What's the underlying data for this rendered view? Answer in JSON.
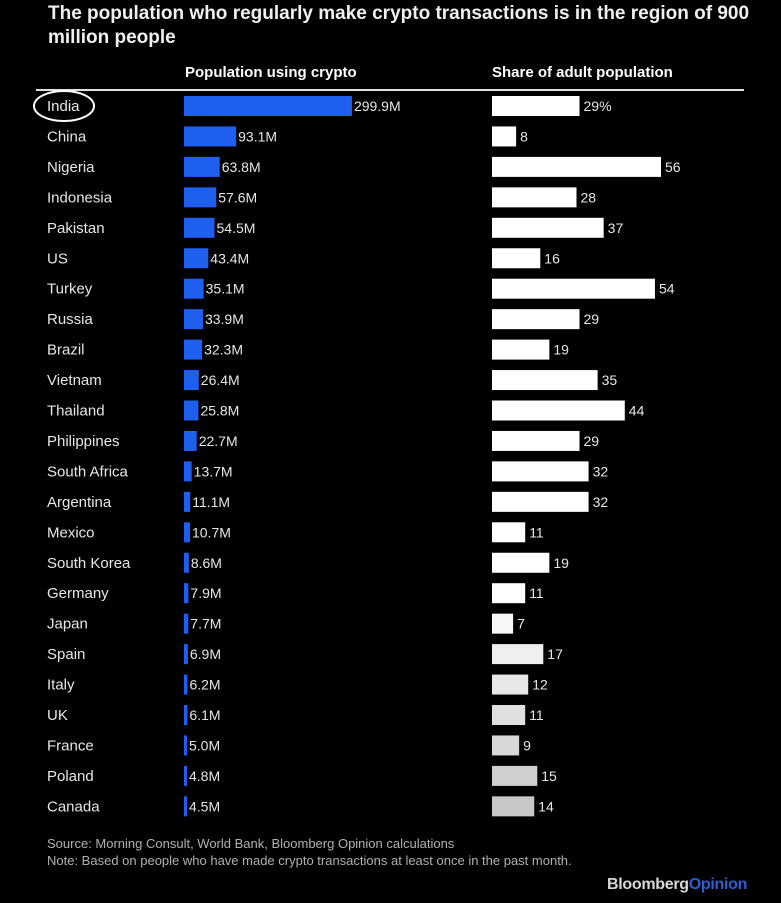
{
  "title": "The population who regularly make crypto transactions is in the region of 900 million people",
  "headers": {
    "population": "Population using crypto",
    "share": "Share of adult population"
  },
  "highlight_country": "India",
  "source": "Source: Morning Consult, World Bank, Bloomberg Opinion calculations",
  "note": "Note: Based on people who have made crypto transactions at least once in the past month.",
  "brand": {
    "part1": "Bloomberg",
    "part2": "Opinion",
    "color1": "#d8d8d8",
    "color2": "#2a5fd8"
  },
  "colors": {
    "population_bar": "#1f5ff0",
    "share_bar": "#ffffff",
    "background": "#000000"
  },
  "chart_data": [
    {
      "type": "bar",
      "orientation": "horizontal",
      "title": "Population using crypto",
      "categories": [
        "India",
        "China",
        "Nigeria",
        "Indonesia",
        "Pakistan",
        "US",
        "Turkey",
        "Russia",
        "Brazil",
        "Vietnam",
        "Thailand",
        "Philippines",
        "South Africa",
        "Argentina",
        "Mexico",
        "South Korea",
        "Germany",
        "Japan",
        "Spain",
        "Italy",
        "UK",
        "France",
        "Poland",
        "Canada"
      ],
      "values": [
        299.9,
        93.1,
        63.8,
        57.6,
        54.5,
        43.4,
        35.1,
        33.9,
        32.3,
        26.4,
        25.8,
        22.7,
        13.7,
        11.1,
        10.7,
        8.6,
        7.9,
        7.7,
        6.9,
        6.2,
        6.1,
        5.0,
        4.8,
        4.5
      ],
      "labels": [
        "299.9M",
        "93.1M",
        "63.8M",
        "57.6M",
        "54.5M",
        "43.4M",
        "35.1M",
        "33.9M",
        "32.3M",
        "26.4M",
        "25.8M",
        "22.7M",
        "13.7M",
        "11.1M",
        "10.7M",
        "8.6M",
        "7.9M",
        "7.7M",
        "6.9M",
        "6.2M",
        "6.1M",
        "5.0M",
        "4.8M",
        "4.5M"
      ],
      "grid": false
    },
    {
      "type": "bar",
      "orientation": "horizontal",
      "title": "Share of adult population",
      "categories": [
        "India",
        "China",
        "Nigeria",
        "Indonesia",
        "Pakistan",
        "US",
        "Turkey",
        "Russia",
        "Brazil",
        "Vietnam",
        "Thailand",
        "Philippines",
        "South Africa",
        "Argentina",
        "Mexico",
        "South Korea",
        "Germany",
        "Japan",
        "Spain",
        "Italy",
        "UK",
        "France",
        "Poland",
        "Canada"
      ],
      "values": [
        29,
        8,
        56,
        28,
        37,
        16,
        54,
        29,
        19,
        35,
        44,
        29,
        32,
        32,
        11,
        19,
        11,
        7,
        17,
        12,
        11,
        9,
        15,
        14
      ],
      "labels": [
        "29%",
        "8",
        "56",
        "28",
        "37",
        "16",
        "54",
        "29",
        "19",
        "35",
        "44",
        "29",
        "32",
        "32",
        "11",
        "19",
        "11",
        "7",
        "17",
        "12",
        "11",
        "9",
        "15",
        "14"
      ],
      "grid": false
    }
  ]
}
